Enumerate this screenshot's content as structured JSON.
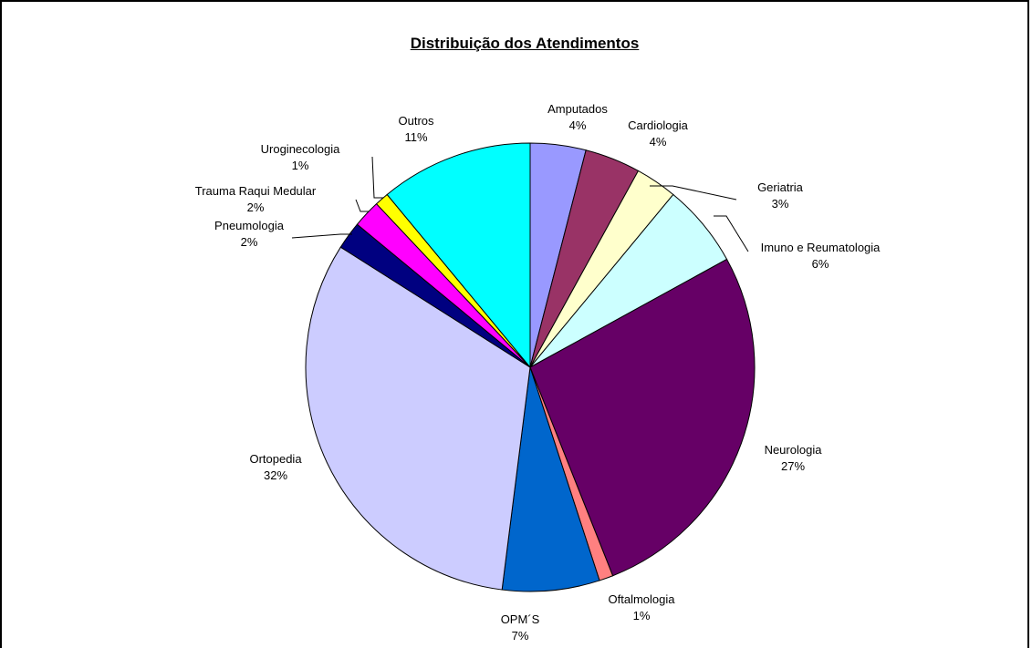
{
  "chart_data": {
    "type": "pie",
    "title": "Distribuição dos Atendimentos",
    "slices": [
      {
        "label": "Amputados",
        "value": 4,
        "value_label": "4%",
        "color": "#9999FF"
      },
      {
        "label": "Cardiologia",
        "value": 4,
        "value_label": "4%",
        "color": "#993366"
      },
      {
        "label": "Geriatria",
        "value": 3,
        "value_label": "3%",
        "color": "#FFFFCC"
      },
      {
        "label": "Imuno e Reumatologia",
        "value": 6,
        "value_label": "6%",
        "color": "#CCFFFF"
      },
      {
        "label": "Neurologia",
        "value": 27,
        "value_label": "27%",
        "color": "#660066"
      },
      {
        "label": "Oftalmologia",
        "value": 1,
        "value_label": "1%",
        "color": "#FF8080"
      },
      {
        "label": "OPM´S",
        "value": 7,
        "value_label": "7%",
        "color": "#0066CC"
      },
      {
        "label": "Ortopedia",
        "value": 32,
        "value_label": "32%",
        "color": "#CCCCFF"
      },
      {
        "label": "Pneumologia",
        "value": 2,
        "value_label": "2%",
        "color": "#000080"
      },
      {
        "label": "Trauma Raqui Medular",
        "value": 2,
        "value_label": "2%",
        "color": "#FF00FF"
      },
      {
        "label": "Uroginecologia",
        "value": 1,
        "value_label": "1%",
        "color": "#FFFF00"
      },
      {
        "label": "Outros",
        "value": 11,
        "value_label": "11%",
        "color": "#00FFFF"
      }
    ]
  }
}
